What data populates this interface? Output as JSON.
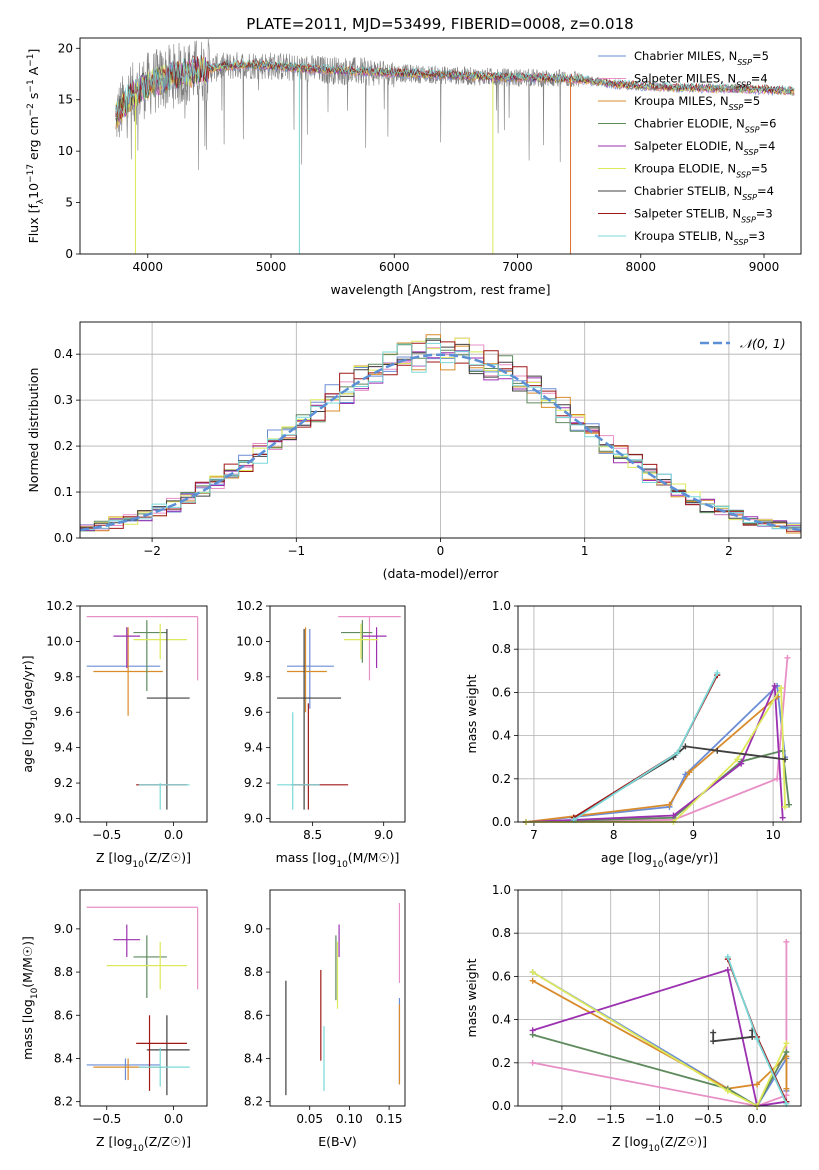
{
  "figure": {
    "title": "PLATE=2011, MJD=53499, FIBERID=0008, z=0.018"
  },
  "chart_data": [
    {
      "id": "spectrum",
      "type": "line",
      "title": "PLATE=2011, MJD=53499, FIBERID=0008, z=0.018",
      "xlabel": "wavelength [Angstrom, rest frame]",
      "ylabel": "Flux [f",
      "ylabel_parts": [
        "Flux [f",
        "λ",
        "10",
        "−17",
        " erg cm",
        "−2",
        " s",
        "−1",
        " A",
        "−1",
        "]"
      ],
      "xlim": [
        3450,
        9300
      ],
      "ylim": [
        0,
        21
      ],
      "xticks": [
        4000,
        5000,
        6000,
        7000,
        8000,
        9000
      ],
      "yticks": [
        0,
        5,
        10,
        15,
        20
      ],
      "grid": false,
      "legend_placement": "upper-right",
      "legend": [
        {
          "label": "Chabrier MILES, N",
          "sub": "SSP",
          "tail": "=5",
          "color": "#6b8dd6"
        },
        {
          "label": "Salpeter MILES, N",
          "sub": "SSP",
          "tail": "=4",
          "color": "#e88fc6"
        },
        {
          "label": "Kroupa MILES, N",
          "sub": "SSP",
          "tail": "=5",
          "color": "#d98c2b"
        },
        {
          "label": "Chabrier ELODIE, N",
          "sub": "SSP",
          "tail": "=6",
          "color": "#5e8a5e"
        },
        {
          "label": "Salpeter ELODIE, N",
          "sub": "SSP",
          "tail": "=4",
          "color": "#9b30b0"
        },
        {
          "label": "Kroupa ELODIE, N",
          "sub": "SSP",
          "tail": "=5",
          "color": "#dde85a"
        },
        {
          "label": "Chabrier STELIB, N",
          "sub": "SSP",
          "tail": "=4",
          "color": "#404040"
        },
        {
          "label": "Salpeter STELIB, N",
          "sub": "SSP",
          "tail": "=3",
          "color": "#a01818"
        },
        {
          "label": "Kroupa STELIB, N",
          "sub": "SSP",
          "tail": "=3",
          "color": "#7ad8d8"
        }
      ],
      "continuum": {
        "x": [
          3750,
          3850,
          4000,
          4200,
          4400,
          4600,
          4800,
          5000,
          5300,
          5600,
          6000,
          6400,
          6800,
          7200,
          7500,
          7800,
          8200,
          8600,
          9000,
          9250
        ],
        "y": [
          13.5,
          15.2,
          16.5,
          17.3,
          17.8,
          18.2,
          18.4,
          18.3,
          18.0,
          17.8,
          17.6,
          17.4,
          17.2,
          17.1,
          17.0,
          16.5,
          16.2,
          16.1,
          16.0,
          15.8
        ]
      },
      "observed_color": "#808080",
      "observed_range": [
        3740,
        7500
      ],
      "model_range": [
        3740,
        9250
      ],
      "model_drops": [
        {
          "x": 3900,
          "color": "#dde85a"
        },
        {
          "x": 5230,
          "color": "#7ad8d8"
        },
        {
          "x": 6800,
          "color": "#dde85a"
        },
        {
          "x": 7430,
          "color": "#e07030"
        }
      ]
    },
    {
      "id": "residuals",
      "type": "line",
      "xlabel": "(data-model)/error",
      "ylabel": "Normed distribution",
      "xlim": [
        -2.5,
        2.5
      ],
      "ylim": [
        0,
        0.47
      ],
      "xticks": [
        -2,
        -1,
        0,
        1,
        2
      ],
      "yticks": [
        0.0,
        0.1,
        0.2,
        0.3,
        0.4
      ],
      "grid": true,
      "legend_placement": "upper-right",
      "legend": [
        {
          "label": "𝒩(0, 1)",
          "color": "#5b8fd6"
        }
      ],
      "bin_width": 0.1,
      "series_colors": [
        "#6b8dd6",
        "#e88fc6",
        "#d98c2b",
        "#5e8a5e",
        "#9b30b0",
        "#dde85a",
        "#404040",
        "#a01818",
        "#7ad8d8"
      ]
    },
    {
      "id": "age-vs-Z",
      "type": "scatter",
      "xlabel": "Z [log10(Z/Z☉)]",
      "ylabel": "age  [log10(age/yr)]",
      "xlim": [
        -0.7,
        0.25
      ],
      "ylim": [
        8.98,
        10.2
      ],
      "xticks": [
        -0.5,
        0.0
      ],
      "yticks": [
        9.0,
        9.2,
        9.4,
        9.6,
        9.8,
        10.0,
        10.2
      ],
      "points": [
        {
          "x": -0.36,
          "y": 9.86,
          "dx": [
            -0.65,
            -0.1
          ],
          "dy": [
            9.86,
            9.86
          ],
          "color": "#6b8dd6"
        },
        {
          "x": 0.18,
          "y": 10.14,
          "dx": [
            -0.65,
            0.18
          ],
          "dy": [
            9.78,
            10.14
          ],
          "color": "#e88fc6"
        },
        {
          "x": -0.34,
          "y": 9.83,
          "dx": [
            -0.6,
            -0.08
          ],
          "dy": [
            9.58,
            10.08
          ],
          "color": "#d98c2b"
        },
        {
          "x": -0.2,
          "y": 10.05,
          "dx": [
            -0.3,
            -0.05
          ],
          "dy": [
            9.72,
            10.12
          ],
          "color": "#5e8a5e"
        },
        {
          "x": -0.35,
          "y": 10.03,
          "dx": [
            -0.45,
            -0.25
          ],
          "dy": [
            9.85,
            10.08
          ],
          "color": "#9b30b0"
        },
        {
          "x": -0.1,
          "y": 10.01,
          "dx": [
            -0.3,
            0.1
          ],
          "dy": [
            9.9,
            10.1
          ],
          "color": "#dde85a"
        },
        {
          "x": -0.05,
          "y": 9.68,
          "dx": [
            -0.2,
            0.12
          ],
          "dy": [
            9.05,
            10.07
          ],
          "color": "#404040"
        },
        {
          "x": -0.18,
          "y": 9.19,
          "dx": [
            -0.28,
            0.1
          ],
          "dy": [
            9.19,
            9.19
          ],
          "color": "#a01818"
        },
        {
          "x": -0.1,
          "y": 9.19,
          "dx": [
            -0.26,
            0.12
          ],
          "dy": [
            9.05,
            9.2
          ],
          "color": "#7ad8d8"
        }
      ]
    },
    {
      "id": "age-vs-mass",
      "type": "scatter",
      "xlabel": "mass [log10(M/M☉)]",
      "ylabel": "",
      "xlim": [
        8.2,
        9.15
      ],
      "ylim": [
        8.98,
        10.2
      ],
      "xticks": [
        8.5,
        9.0
      ],
      "yticks": [
        9.0,
        9.2,
        9.4,
        9.6,
        9.8,
        10.0,
        10.2
      ],
      "points": [
        {
          "x": 8.48,
          "y": 9.86,
          "dx": [
            8.32,
            8.65
          ],
          "dy": [
            9.62,
            10.07
          ],
          "color": "#6b8dd6"
        },
        {
          "x": 8.9,
          "y": 10.14,
          "dx": [
            8.68,
            9.12
          ],
          "dy": [
            9.78,
            10.14
          ],
          "color": "#e88fc6"
        },
        {
          "x": 8.45,
          "y": 9.83,
          "dx": [
            8.32,
            8.6
          ],
          "dy": [
            9.6,
            10.08
          ],
          "color": "#d98c2b"
        },
        {
          "x": 8.85,
          "y": 10.05,
          "dx": [
            8.7,
            8.92
          ],
          "dy": [
            9.88,
            10.12
          ],
          "color": "#5e8a5e"
        },
        {
          "x": 8.95,
          "y": 10.03,
          "dx": [
            8.85,
            9.02
          ],
          "dy": [
            9.85,
            10.08
          ],
          "color": "#9b30b0"
        },
        {
          "x": 8.84,
          "y": 10.01,
          "dx": [
            8.72,
            8.96
          ],
          "dy": [
            9.9,
            10.1
          ],
          "color": "#dde85a"
        },
        {
          "x": 8.44,
          "y": 9.68,
          "dx": [
            8.25,
            8.7
          ],
          "dy": [
            9.05,
            10.07
          ],
          "color": "#404040"
        },
        {
          "x": 8.47,
          "y": 9.19,
          "dx": [
            8.35,
            8.75
          ],
          "dy": [
            9.05,
            9.65
          ],
          "color": "#a01818"
        },
        {
          "x": 8.36,
          "y": 9.19,
          "dx": [
            8.25,
            8.55
          ],
          "dy": [
            9.05,
            9.6
          ],
          "color": "#7ad8d8"
        }
      ]
    },
    {
      "id": "weight-vs-age",
      "type": "line",
      "xlabel": "age  [log10(age/yr)]",
      "ylabel": "mass weight",
      "xlim": [
        6.8,
        10.35
      ],
      "ylim": [
        0,
        1
      ],
      "xticks": [
        7,
        8,
        9,
        10
      ],
      "yticks": [
        0.0,
        0.2,
        0.4,
        0.6,
        0.8,
        1.0
      ],
      "grid": true,
      "series": [
        {
          "name": "",
          "color": "#6b8dd6",
          "x": [
            6.9,
            8.7,
            8.9,
            10.05,
            10.15
          ],
          "y": [
            0.0,
            0.07,
            0.22,
            0.63,
            0.3
          ]
        },
        {
          "name": "",
          "color": "#e88fc6",
          "x": [
            6.9,
            8.75,
            10.05,
            10.18
          ],
          "y": [
            0.0,
            0.01,
            0.2,
            0.76
          ]
        },
        {
          "name": "",
          "color": "#d98c2b",
          "x": [
            6.9,
            8.7,
            8.95,
            10.05
          ],
          "y": [
            0.0,
            0.08,
            0.23,
            0.58
          ]
        },
        {
          "name": "",
          "color": "#5e8a5e",
          "x": [
            6.9,
            8.75,
            9.6,
            10.12,
            10.2
          ],
          "y": [
            0.0,
            0.02,
            0.28,
            0.33,
            0.08
          ]
        },
        {
          "name": "",
          "color": "#9b30b0",
          "x": [
            6.9,
            8.75,
            9.6,
            10.02,
            10.12
          ],
          "y": [
            0.0,
            0.03,
            0.27,
            0.63,
            0.02
          ]
        },
        {
          "name": "",
          "color": "#dde85a",
          "x": [
            6.9,
            8.75,
            9.55,
            10.1,
            10.15
          ],
          "y": [
            0.0,
            0.0,
            0.29,
            0.62,
            0.07
          ]
        },
        {
          "name": "",
          "color": "#404040",
          "x": [
            7.5,
            8.75,
            8.9,
            9.3,
            10.15
          ],
          "y": [
            0.02,
            0.3,
            0.35,
            0.33,
            0.29
          ]
        },
        {
          "name": "",
          "color": "#a01818",
          "x": [
            7.5,
            8.8,
            9.3
          ],
          "y": [
            0.02,
            0.32,
            0.68
          ]
        },
        {
          "name": "",
          "color": "#7ad8d8",
          "x": [
            7.5,
            8.8,
            9.3
          ],
          "y": [
            0.01,
            0.32,
            0.69
          ]
        }
      ]
    },
    {
      "id": "mass-vs-Z",
      "type": "scatter",
      "xlabel": "Z [log10(Z/Z☉)]",
      "ylabel": "mass [log10(M/M☉)]",
      "xlim": [
        -0.7,
        0.25
      ],
      "ylim": [
        8.18,
        9.18
      ],
      "xticks": [
        -0.5,
        0.0
      ],
      "yticks": [
        8.2,
        8.4,
        8.6,
        8.8,
        9.0
      ],
      "points": [
        {
          "x": -0.36,
          "y": 8.37,
          "dx": [
            -0.65,
            -0.1
          ],
          "dy": [
            8.3,
            8.4
          ],
          "color": "#6b8dd6"
        },
        {
          "x": 0.18,
          "y": 9.1,
          "dx": [
            -0.65,
            0.18
          ],
          "dy": [
            8.72,
            9.1
          ],
          "color": "#e88fc6"
        },
        {
          "x": -0.34,
          "y": 8.36,
          "dx": [
            -0.6,
            -0.08
          ],
          "dy": [
            8.3,
            8.4
          ],
          "color": "#d98c2b"
        },
        {
          "x": -0.2,
          "y": 8.87,
          "dx": [
            -0.3,
            -0.05
          ],
          "dy": [
            8.68,
            8.97
          ],
          "color": "#5e8a5e"
        },
        {
          "x": -0.35,
          "y": 8.95,
          "dx": [
            -0.45,
            -0.25
          ],
          "dy": [
            8.87,
            9.02
          ],
          "color": "#9b30b0"
        },
        {
          "x": -0.1,
          "y": 8.83,
          "dx": [
            -0.5,
            0.1
          ],
          "dy": [
            8.72,
            8.94
          ],
          "color": "#dde85a"
        },
        {
          "x": -0.05,
          "y": 8.44,
          "dx": [
            -0.2,
            0.12
          ],
          "dy": [
            8.23,
            8.6
          ],
          "color": "#404040"
        },
        {
          "x": -0.18,
          "y": 8.47,
          "dx": [
            -0.28,
            0.1
          ],
          "dy": [
            8.25,
            8.6
          ],
          "color": "#a01818"
        },
        {
          "x": -0.1,
          "y": 8.36,
          "dx": [
            -0.26,
            0.12
          ],
          "dy": [
            8.27,
            8.45
          ],
          "color": "#7ad8d8"
        }
      ]
    },
    {
      "id": "mass-vs-ebv",
      "type": "scatter",
      "xlabel": "E(B-V)",
      "ylabel": "",
      "xlim": [
        0.0,
        0.17
      ],
      "ylim": [
        8.18,
        9.18
      ],
      "xticks": [
        0.05,
        0.1,
        0.15
      ],
      "yticks": [
        8.2,
        8.4,
        8.6,
        8.8,
        9.0
      ],
      "points": [
        {
          "x": 0.163,
          "y": 8.48,
          "dy": [
            8.28,
            8.68
          ],
          "color": "#6b8dd6"
        },
        {
          "x": 0.163,
          "y": 8.95,
          "dy": [
            8.75,
            9.12
          ],
          "color": "#e88fc6"
        },
        {
          "x": 0.163,
          "y": 8.45,
          "dy": [
            8.28,
            8.65
          ],
          "color": "#d98c2b"
        },
        {
          "x": 0.083,
          "y": 8.82,
          "dy": [
            8.67,
            8.97
          ],
          "color": "#5e8a5e"
        },
        {
          "x": 0.087,
          "y": 8.95,
          "dy": [
            8.87,
            9.02
          ],
          "color": "#9b30b0"
        },
        {
          "x": 0.085,
          "y": 8.8,
          "dy": [
            8.63,
            8.94
          ],
          "color": "#dde85a"
        },
        {
          "x": 0.02,
          "y": 8.5,
          "dy": [
            8.23,
            8.76
          ],
          "color": "#404040"
        },
        {
          "x": 0.064,
          "y": 8.6,
          "dy": [
            8.39,
            8.81
          ],
          "color": "#a01818"
        },
        {
          "x": 0.068,
          "y": 8.4,
          "dy": [
            8.25,
            8.55
          ],
          "color": "#7ad8d8"
        }
      ]
    },
    {
      "id": "weight-vs-Z",
      "type": "line",
      "xlabel": "Z [log10(Z/Z☉)]",
      "ylabel": "mass weight",
      "xlim": [
        -2.45,
        0.45
      ],
      "ylim": [
        0,
        1
      ],
      "xticks": [
        -2.0,
        -1.5,
        -1.0,
        -0.5,
        0.0
      ],
      "yticks": [
        0.0,
        0.2,
        0.4,
        0.6,
        0.8,
        1.0
      ],
      "grid": true,
      "series": [
        {
          "name": "",
          "color": "#6b8dd6",
          "x": [
            -2.3,
            -0.3,
            0.0,
            0.3,
            0.3
          ],
          "y": [
            0.62,
            0.08,
            0.0,
            0.22,
            0.07
          ]
        },
        {
          "name": "",
          "color": "#e88fc6",
          "x": [
            -2.3,
            0.0,
            0.3,
            0.3
          ],
          "y": [
            0.2,
            0.0,
            0.05,
            0.76
          ]
        },
        {
          "name": "",
          "color": "#d98c2b",
          "x": [
            -2.3,
            -0.3,
            0.0,
            0.3,
            0.3
          ],
          "y": [
            0.58,
            0.08,
            0.1,
            0.23,
            0.08
          ]
        },
        {
          "name": "",
          "color": "#5e8a5e",
          "x": [
            -2.3,
            -0.3,
            0.0,
            0.3
          ],
          "y": [
            0.33,
            0.08,
            0.0,
            0.25
          ]
        },
        {
          "name": "",
          "color": "#9b30b0",
          "x": [
            -2.3,
            -0.3,
            0.0,
            0.3
          ],
          "y": [
            0.35,
            0.63,
            0.0,
            0.02
          ]
        },
        {
          "name": "",
          "color": "#dde85a",
          "x": [
            -2.3,
            -0.3,
            0.0,
            0.3
          ],
          "y": [
            0.62,
            0.07,
            0.0,
            0.29
          ]
        },
        {
          "name": "",
          "color": "#404040",
          "x": [
            -0.05,
            -0.05,
            -0.45,
            -0.45
          ],
          "y": [
            0.35,
            0.32,
            0.3,
            0.34
          ]
        },
        {
          "name": "",
          "color": "#a01818",
          "x": [
            -0.3,
            0.0,
            0.3
          ],
          "y": [
            0.68,
            0.32,
            0.02
          ]
        },
        {
          "name": "",
          "color": "#7ad8d8",
          "x": [
            -0.3,
            0.0,
            0.3
          ],
          "y": [
            0.69,
            0.31,
            0.01
          ]
        }
      ]
    }
  ]
}
